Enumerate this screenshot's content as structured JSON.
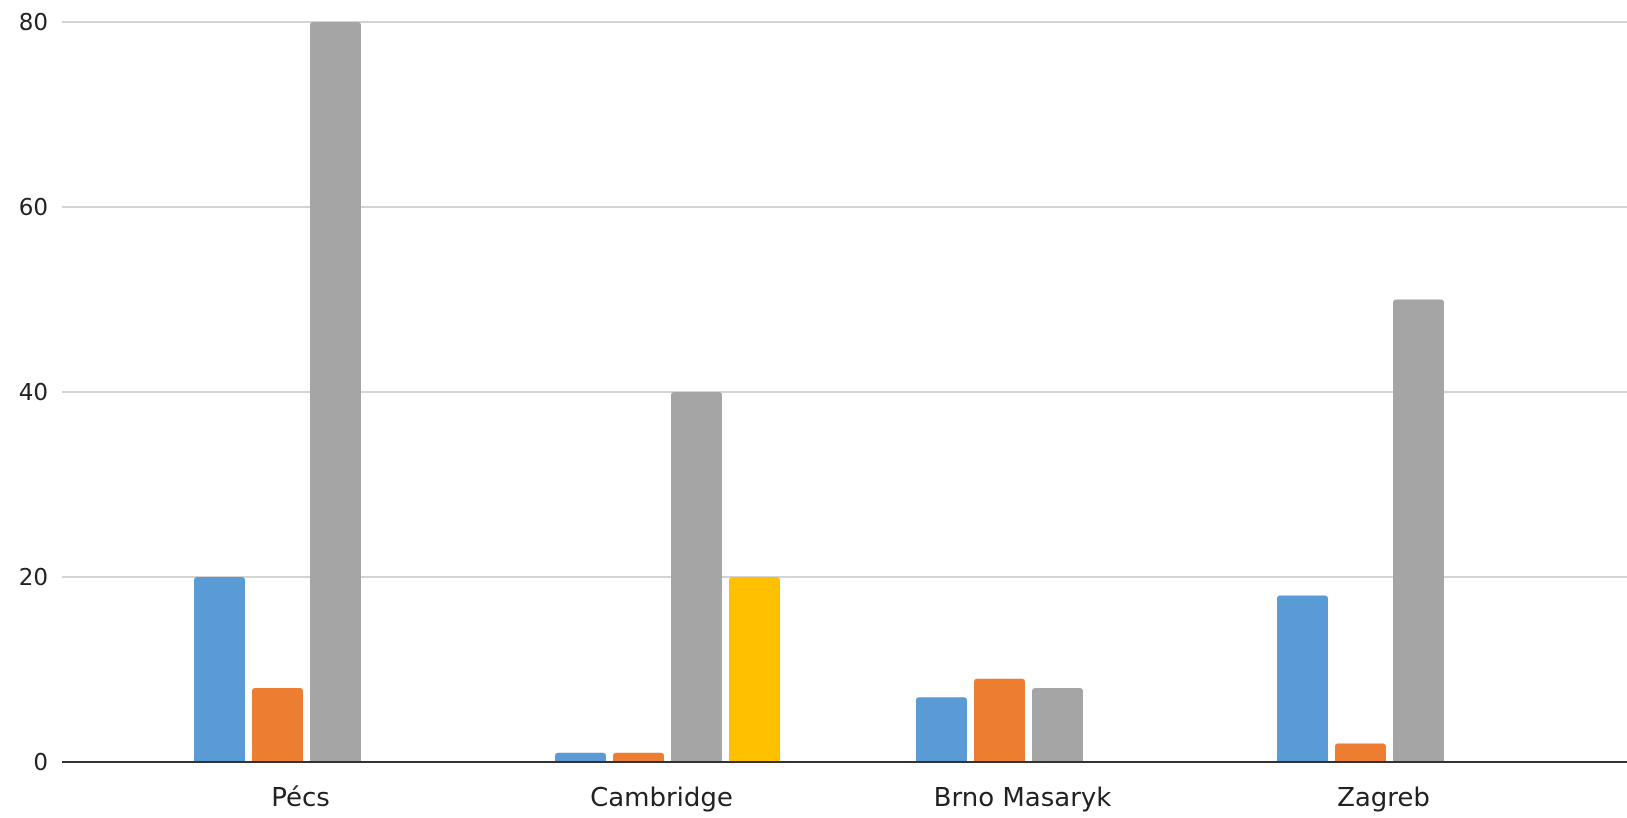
{
  "chart_data": {
    "type": "bar",
    "title": "",
    "xlabel": "",
    "ylabel": "",
    "categories": [
      "Pécs",
      "Cambridge",
      "Brno Masaryk",
      "Zagreb"
    ],
    "series": [
      {
        "values": [
          20,
          1,
          7,
          18
        ],
        "color": "#5B9BD5"
      },
      {
        "values": [
          8,
          1,
          9,
          2
        ],
        "color": "#ED7D31"
      },
      {
        "values": [
          80,
          40,
          8,
          50
        ],
        "color": "#A5A5A5"
      },
      {
        "values": [
          0,
          20,
          0,
          0
        ],
        "color": "#FFC000"
      }
    ],
    "ylim": [
      0,
      80
    ],
    "yticks": [
      "0",
      "20",
      "40",
      "60",
      "80"
    ],
    "grid": true,
    "legend": "none"
  }
}
